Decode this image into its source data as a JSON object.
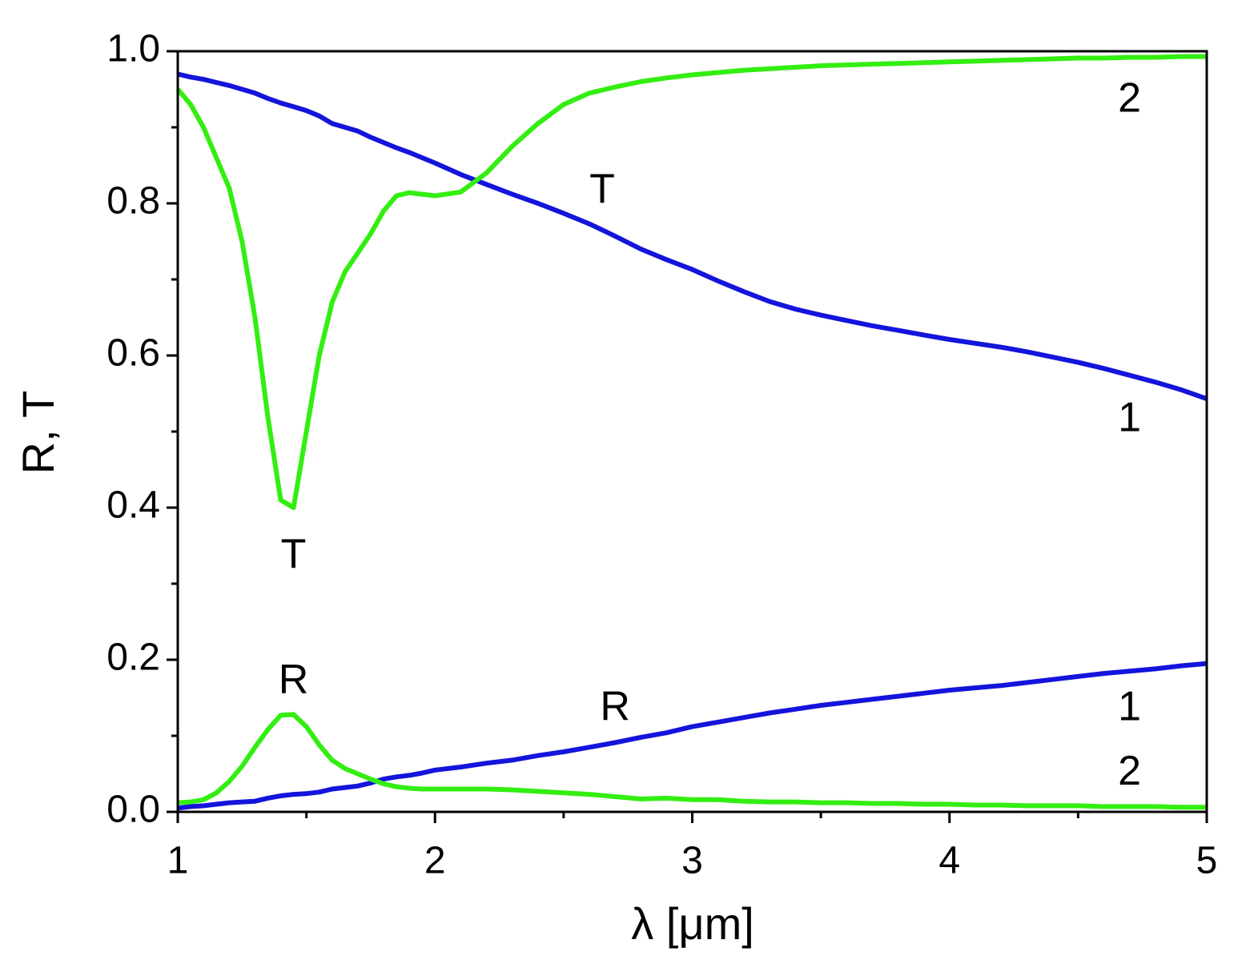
{
  "chart_data": {
    "type": "line",
    "xlabel": "λ [μm]",
    "ylabel": "R, T",
    "x": [
      1,
      1.05,
      1.1,
      1.15,
      1.2,
      1.25,
      1.3,
      1.35,
      1.4,
      1.45,
      1.5,
      1.55,
      1.6,
      1.65,
      1.7,
      1.75,
      1.8,
      1.85,
      1.9,
      1.95,
      2,
      2.1,
      2.2,
      2.3,
      2.4,
      2.5,
      2.6,
      2.7,
      2.8,
      2.9,
      3,
      3.1,
      3.2,
      3.3,
      3.4,
      3.5,
      3.6,
      3.7,
      3.8,
      3.9,
      4,
      4.1,
      4.2,
      4.3,
      4.4,
      4.5,
      4.6,
      4.7,
      4.8,
      4.9,
      5
    ],
    "series": [
      {
        "color": "#1414dc",
        "values": [
          0.97,
          0.966,
          0.963,
          0.959,
          0.955,
          0.95,
          0.945,
          0.938,
          0.932,
          0.927,
          0.922,
          0.915,
          0.905,
          0.9,
          0.895,
          0.887,
          0.88,
          0.873,
          0.867,
          0.86,
          0.853,
          0.838,
          0.825,
          0.812,
          0.8,
          0.787,
          0.773,
          0.757,
          0.74,
          0.726,
          0.713,
          0.698,
          0.684,
          0.671,
          0.661,
          0.653,
          0.646,
          0.639,
          0.633,
          0.627,
          0.621,
          0.616,
          0.611,
          0.605,
          0.598,
          0.591,
          0.583,
          0.574,
          0.565,
          0.555,
          0.543
        ]
      },
      {
        "color": "#33ee11",
        "values": [
          0.95,
          0.93,
          0.9,
          0.86,
          0.82,
          0.75,
          0.65,
          0.52,
          0.41,
          0.4,
          0.5,
          0.6,
          0.67,
          0.71,
          0.735,
          0.76,
          0.79,
          0.81,
          0.814,
          0.812,
          0.81,
          0.815,
          0.84,
          0.875,
          0.905,
          0.93,
          0.945,
          0.953,
          0.96,
          0.965,
          0.969,
          0.972,
          0.975,
          0.977,
          0.979,
          0.981,
          0.982,
          0.983,
          0.984,
          0.985,
          0.986,
          0.987,
          0.988,
          0.989,
          0.99,
          0.991,
          0.991,
          0.992,
          0.992,
          0.993,
          0.993
        ]
      },
      {
        "color": "#1414dc",
        "values": [
          0.005,
          0.007,
          0.008,
          0.01,
          0.012,
          0.013,
          0.014,
          0.018,
          0.021,
          0.023,
          0.024,
          0.026,
          0.03,
          0.032,
          0.034,
          0.038,
          0.043,
          0.046,
          0.048,
          0.051,
          0.055,
          0.059,
          0.064,
          0.068,
          0.074,
          0.079,
          0.085,
          0.091,
          0.098,
          0.104,
          0.112,
          0.118,
          0.124,
          0.13,
          0.135,
          0.14,
          0.144,
          0.148,
          0.152,
          0.156,
          0.16,
          0.163,
          0.166,
          0.17,
          0.174,
          0.178,
          0.182,
          0.185,
          0.188,
          0.192,
          0.195
        ]
      },
      {
        "color": "#33ee11",
        "values": [
          0.012,
          0.013,
          0.016,
          0.025,
          0.04,
          0.06,
          0.085,
          0.108,
          0.127,
          0.128,
          0.112,
          0.088,
          0.068,
          0.057,
          0.05,
          0.043,
          0.037,
          0.033,
          0.031,
          0.03,
          0.03,
          0.03,
          0.03,
          0.029,
          0.027,
          0.025,
          0.023,
          0.02,
          0.017,
          0.018,
          0.016,
          0.016,
          0.014,
          0.013,
          0.013,
          0.012,
          0.012,
          0.011,
          0.011,
          0.01,
          0.01,
          0.009,
          0.009,
          0.008,
          0.008,
          0.008,
          0.007,
          0.007,
          0.007,
          0.006,
          0.006
        ]
      }
    ],
    "xlim": [
      1,
      5
    ],
    "xticks": [
      1,
      2,
      3,
      4,
      5
    ],
    "xminorticks": [
      1.5,
      2.5,
      3.5,
      4.5
    ],
    "ylim": [
      0,
      1
    ],
    "yticks": [
      {
        "value": 0,
        "label": "0.0"
      },
      0.2,
      0.4,
      0.6,
      0.8,
      {
        "value": 1,
        "label": "1.0"
      }
    ],
    "yminorticks": [
      0.1,
      0.3,
      0.5,
      0.7,
      0.9
    ],
    "annotations": [
      {
        "text": "T",
        "x": 2.65,
        "y": 0.815
      },
      {
        "text": "T",
        "x": 1.45,
        "y": 0.335
      },
      {
        "text": "R",
        "x": 1.45,
        "y": 0.17
      },
      {
        "text": "R",
        "x": 2.7,
        "y": 0.135
      },
      {
        "text": "2",
        "x": 4.7,
        "y": 0.935
      },
      {
        "text": "1",
        "x": 4.7,
        "y": 0.515
      },
      {
        "text": "1",
        "x": 4.7,
        "y": 0.135
      },
      {
        "text": "2",
        "x": 4.7,
        "y": 0.05
      }
    ]
  }
}
